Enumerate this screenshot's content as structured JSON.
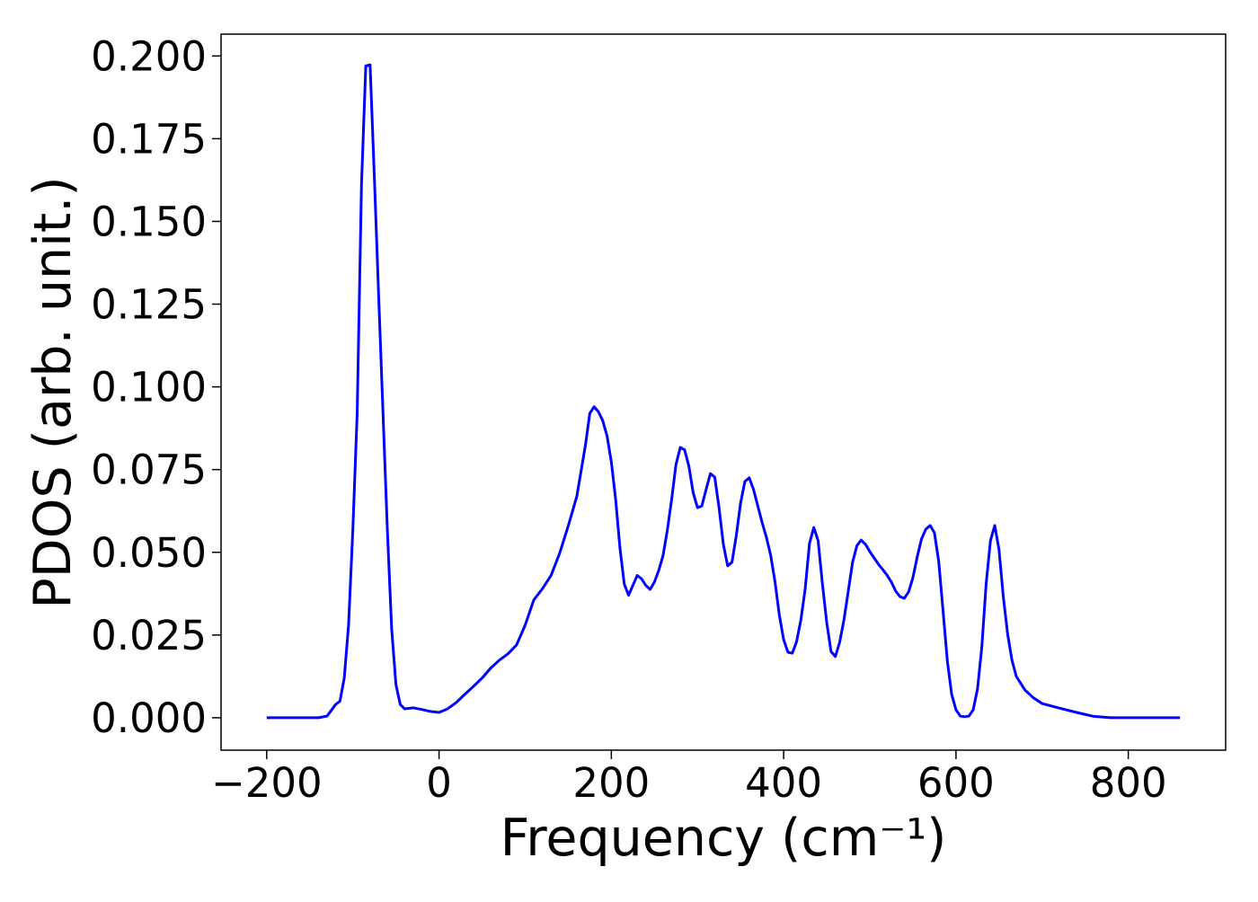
{
  "chart_data": {
    "type": "line",
    "xlabel": "Frequency (cm⁻¹)",
    "ylabel": "PDOS (arb. unit.)",
    "color": "#0000ff",
    "x": [
      -200,
      -140,
      -130,
      -120,
      -115,
      -110,
      -105,
      -100,
      -95,
      -90,
      -85,
      -80,
      -75,
      -70,
      -65,
      -60,
      -55,
      -50,
      -45,
      -40,
      -30,
      -20,
      -10,
      0,
      10,
      20,
      30,
      40,
      50,
      60,
      70,
      80,
      90,
      100,
      110,
      120,
      130,
      140,
      150,
      160,
      170,
      175,
      180,
      185,
      190,
      195,
      200,
      205,
      210,
      215,
      220,
      225,
      230,
      235,
      240,
      245,
      250,
      255,
      260,
      265,
      270,
      275,
      280,
      285,
      290,
      295,
      300,
      305,
      310,
      315,
      320,
      325,
      330,
      335,
      340,
      345,
      350,
      355,
      360,
      365,
      370,
      375,
      380,
      385,
      390,
      395,
      400,
      405,
      410,
      415,
      420,
      425,
      430,
      435,
      440,
      445,
      450,
      455,
      460,
      465,
      470,
      475,
      480,
      485,
      490,
      495,
      500,
      505,
      510,
      515,
      520,
      525,
      530,
      535,
      540,
      545,
      550,
      555,
      560,
      565,
      570,
      575,
      580,
      585,
      590,
      595,
      600,
      605,
      610,
      615,
      620,
      625,
      630,
      635,
      640,
      645,
      650,
      655,
      660,
      665,
      670,
      680,
      690,
      700,
      720,
      740,
      760,
      780,
      860
    ],
    "values": [
      0,
      0,
      0.0005,
      0.004,
      0.005,
      0.012,
      0.028,
      0.057,
      0.092,
      0.161,
      0.197,
      0.1973,
      0.163,
      0.127,
      0.092,
      0.057,
      0.027,
      0.01,
      0.004,
      0.0027,
      0.003,
      0.0025,
      0.0019,
      0.0016,
      0.0027,
      0.0046,
      0.0071,
      0.0095,
      0.012,
      0.015,
      0.0174,
      0.0193,
      0.022,
      0.028,
      0.0356,
      0.039,
      0.043,
      0.0497,
      0.058,
      0.067,
      0.0825,
      0.092,
      0.094,
      0.0925,
      0.0898,
      0.0852,
      0.0773,
      0.066,
      0.0513,
      0.0404,
      0.037,
      0.04,
      0.043,
      0.042,
      0.04,
      0.0388,
      0.041,
      0.0445,
      0.049,
      0.0567,
      0.066,
      0.0765,
      0.0817,
      0.081,
      0.076,
      0.068,
      0.0635,
      0.064,
      0.069,
      0.0738,
      0.0727,
      0.0635,
      0.0524,
      0.0459,
      0.047,
      0.055,
      0.0649,
      0.0714,
      0.0725,
      0.069,
      0.064,
      0.059,
      0.0545,
      0.049,
      0.041,
      0.031,
      0.0236,
      0.0198,
      0.0195,
      0.023,
      0.0296,
      0.039,
      0.0527,
      0.0575,
      0.0535,
      0.0404,
      0.0288,
      0.02,
      0.0185,
      0.0228,
      0.0296,
      0.0383,
      0.047,
      0.052,
      0.0537,
      0.0524,
      0.0502,
      0.0483,
      0.0464,
      0.0448,
      0.0431,
      0.041,
      0.0383,
      0.0366,
      0.0361,
      0.038,
      0.0423,
      0.0486,
      0.054,
      0.057,
      0.0581,
      0.0559,
      0.0472,
      0.0323,
      0.0171,
      0.0071,
      0.0024,
      0.0005,
      0.0003,
      0.0005,
      0.0024,
      0.0087,
      0.0214,
      0.0404,
      0.0535,
      0.0581,
      0.0507,
      0.0364,
      0.0252,
      0.0174,
      0.0125,
      0.0084,
      0.006,
      0.0043,
      0.0029,
      0.0016,
      0.0004,
      0,
      0
    ],
    "xlim": [
      -253,
      913
    ],
    "ylim": [
      -0.0098,
      0.2066
    ],
    "xticks": [
      {
        "value": -200,
        "label": "−200"
      },
      0,
      200,
      400,
      600,
      800
    ],
    "yticks": [
      {
        "value": 0,
        "label": "0.000"
      },
      {
        "value": 0.025,
        "label": "0.025"
      },
      {
        "value": 0.05,
        "label": "0.050"
      },
      {
        "value": 0.075,
        "label": "0.075"
      },
      {
        "value": 0.1,
        "label": "0.100"
      },
      {
        "value": 0.125,
        "label": "0.125"
      },
      {
        "value": 0.15,
        "label": "0.150"
      },
      {
        "value": 0.175,
        "label": "0.175"
      },
      {
        "value": 0.2,
        "label": "0.200"
      }
    ],
    "grid": false
  }
}
